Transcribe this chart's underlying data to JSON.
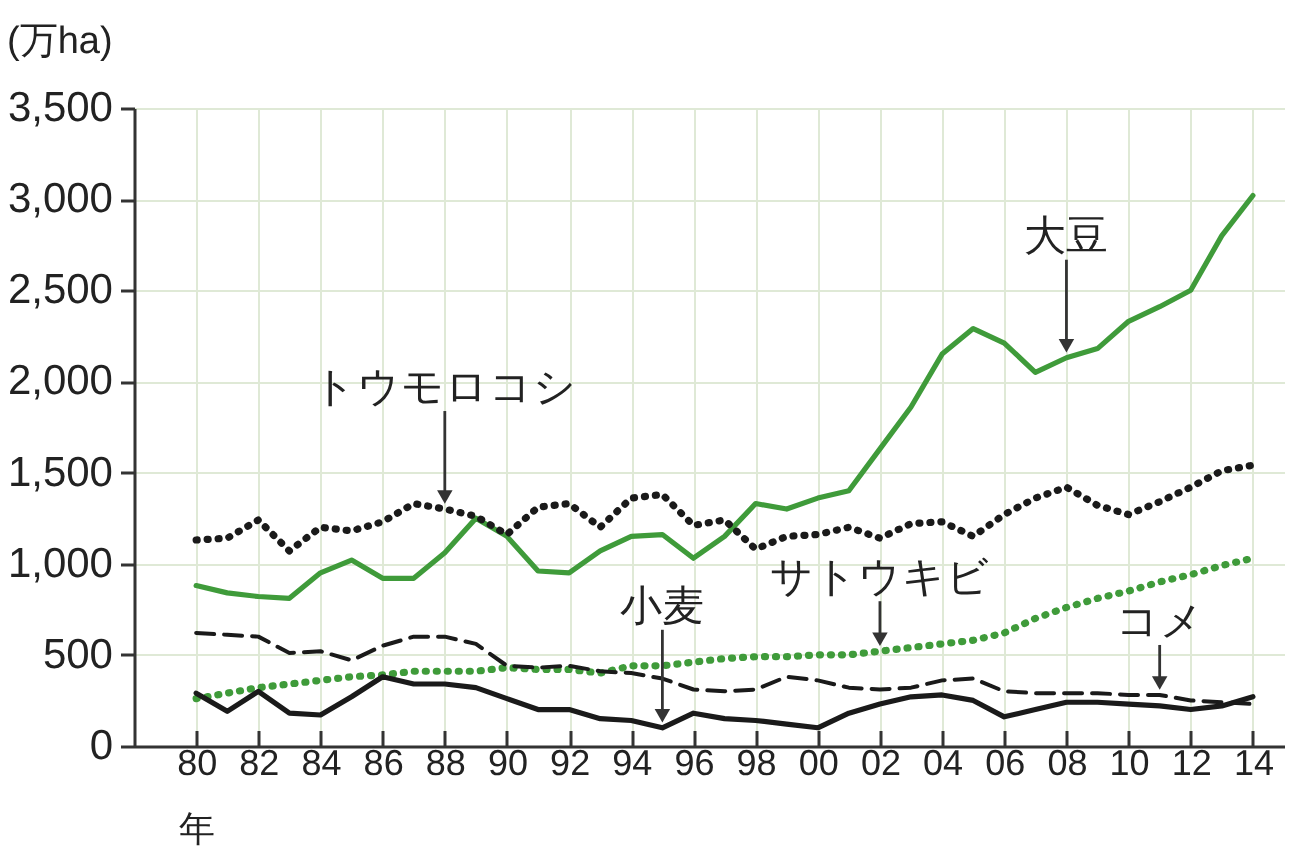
{
  "chart_data": {
    "type": "line",
    "ylabel": "(万ha)",
    "xlabel": "年",
    "x": [
      1980,
      1981,
      1982,
      1983,
      1984,
      1985,
      1986,
      1987,
      1988,
      1989,
      1990,
      1991,
      1992,
      1993,
      1994,
      1995,
      1996,
      1997,
      1998,
      1999,
      2000,
      2001,
      2002,
      2003,
      2004,
      2005,
      2006,
      2007,
      2008,
      2009,
      2010,
      2011,
      2012,
      2013,
      2014
    ],
    "series": [
      {
        "color": "#3f9b3a",
        "line_style": "solid",
        "values": [
          880,
          840,
          820,
          810,
          950,
          1020,
          920,
          920,
          1060,
          1250,
          1150,
          960,
          950,
          1070,
          1150,
          1160,
          1030,
          1150,
          1330,
          1300,
          1360,
          1400,
          1630,
          1860,
          2150,
          2290,
          2210,
          2050,
          2130,
          2180,
          2330,
          2410,
          2500,
          2800,
          3020
        ]
      },
      {
        "color": "#1a1a1a",
        "line_style": "dotted",
        "values": [
          1130,
          1140,
          1240,
          1070,
          1200,
          1180,
          1230,
          1330,
          1300,
          1260,
          1160,
          1310,
          1330,
          1200,
          1360,
          1380,
          1210,
          1240,
          1080,
          1150,
          1160,
          1200,
          1140,
          1220,
          1230,
          1150,
          1270,
          1360,
          1420,
          1320,
          1270,
          1340,
          1420,
          1510,
          1540
        ]
      },
      {
        "color": "#3f9b3a",
        "line_style": "dotted",
        "values": [
          260,
          290,
          320,
          340,
          360,
          380,
          390,
          410,
          410,
          410,
          430,
          420,
          420,
          400,
          440,
          440,
          460,
          480,
          490,
          490,
          500,
          500,
          520,
          540,
          560,
          580,
          620,
          700,
          760,
          810,
          850,
          900,
          940,
          990,
          1030
        ]
      },
      {
        "color": "#1a1a1a",
        "line_style": "solid",
        "values": [
          290,
          190,
          300,
          180,
          170,
          270,
          380,
          340,
          340,
          320,
          260,
          200,
          200,
          150,
          140,
          100,
          180,
          150,
          140,
          120,
          100,
          180,
          230,
          270,
          280,
          250,
          160,
          200,
          240,
          240,
          230,
          220,
          200,
          220,
          270
        ]
      },
      {
        "color": "#1a1a1a",
        "line_style": "dashed",
        "values": [
          620,
          610,
          600,
          510,
          520,
          470,
          550,
          600,
          600,
          560,
          440,
          430,
          440,
          410,
          400,
          370,
          310,
          300,
          310,
          380,
          360,
          320,
          310,
          320,
          360,
          370,
          300,
          290,
          290,
          290,
          280,
          280,
          250,
          240,
          230
        ]
      }
    ],
    "annotations": [
      {
        "text": "大豆",
        "x": 2008,
        "y": 2130
      },
      {
        "text": "トウモロコシ",
        "x": 1988,
        "y": 1300
      },
      {
        "text": "小麦",
        "x": 1995,
        "y": 100
      },
      {
        "text": "サトウキビ",
        "x": 2002,
        "y": 520
      },
      {
        "text": "コメ",
        "x": 2011,
        "y": 280
      }
    ],
    "xlim": [
      1978,
      2015
    ],
    "xticks": [
      {
        "value": 1980,
        "label": "80"
      },
      {
        "value": 1982,
        "label": "82"
      },
      {
        "value": 1984,
        "label": "84"
      },
      {
        "value": 1986,
        "label": "86"
      },
      {
        "value": 1988,
        "label": "88"
      },
      {
        "value": 1990,
        "label": "90"
      },
      {
        "value": 1992,
        "label": "92"
      },
      {
        "value": 1994,
        "label": "94"
      },
      {
        "value": 1996,
        "label": "96"
      },
      {
        "value": 1998,
        "label": "98"
      },
      {
        "value": 2000,
        "label": "00"
      },
      {
        "value": 2002,
        "label": "02"
      },
      {
        "value": 2004,
        "label": "04"
      },
      {
        "value": 2006,
        "label": "06"
      },
      {
        "value": 2008,
        "label": "08"
      },
      {
        "value": 2010,
        "label": "10"
      },
      {
        "value": 2012,
        "label": "12"
      },
      {
        "value": 2014,
        "label": "14"
      }
    ],
    "ylim": [
      0,
      3500
    ],
    "yticks": [
      0,
      500,
      {
        "value": 1000,
        "label": "1,000"
      },
      {
        "value": 1500,
        "label": "1,500"
      },
      {
        "value": 2000,
        "label": "2,000"
      },
      {
        "value": 2500,
        "label": "2,500"
      },
      {
        "value": 3000,
        "label": "3,000"
      },
      {
        "value": 3500,
        "label": "3,500"
      }
    ],
    "grid": true
  }
}
